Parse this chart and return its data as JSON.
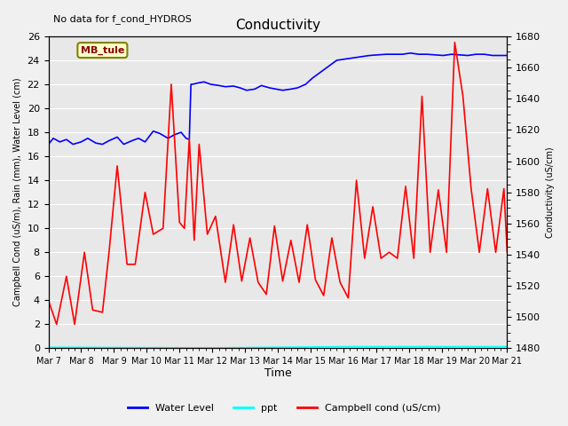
{
  "title": "Conductivity",
  "top_left_text": "No data for f_cond_HYDROS",
  "ylabel_left": "Campbell Cond (uS/m), Rain (mm), Water Level (cm)",
  "ylabel_right": "Conductivity (uS/cm)",
  "xlabel": "Time",
  "ylim_left": [
    0,
    26
  ],
  "ylim_right": [
    1480,
    1680
  ],
  "yticks_left": [
    0,
    2,
    4,
    6,
    8,
    10,
    12,
    14,
    16,
    18,
    20,
    22,
    24,
    26
  ],
  "yticks_right": [
    1480,
    1500,
    1520,
    1540,
    1560,
    1580,
    1600,
    1620,
    1640,
    1660,
    1680
  ],
  "xtick_labels": [
    "Mar 7",
    "Mar 8",
    "Mar 9",
    "Mar 10",
    "Mar 11",
    "Mar 12",
    "Mar 13",
    "Mar 14",
    "Mar 15",
    "Mar 16",
    "Mar 17",
    "Mar 18",
    "Mar 19",
    "Mar 20",
    "Mar 21"
  ],
  "annotation_box": "MB_tule",
  "background_color": "#f0f0f0",
  "plot_bg_color": "#e8e8e8",
  "grid_color": "white",
  "water_level_color": "blue",
  "ppt_color": "cyan",
  "campbell_cond_color": "red",
  "wl_x": [
    0,
    0.15,
    0.35,
    0.55,
    0.75,
    1.0,
    1.2,
    1.45,
    1.65,
    1.85,
    2.1,
    2.3,
    2.55,
    2.75,
    2.95,
    3.2,
    3.4,
    3.65,
    3.85,
    4.05,
    4.2,
    4.3,
    4.35,
    4.4,
    4.55,
    4.75,
    4.95,
    5.2,
    5.4,
    5.65,
    5.85,
    6.05,
    6.3,
    6.5,
    6.75,
    6.95,
    7.15,
    7.4,
    7.6,
    7.85,
    8.05,
    8.3,
    8.55,
    8.8,
    9.05,
    9.3,
    9.55,
    9.8,
    10.05,
    10.3,
    10.55,
    10.8,
    11.05,
    11.3,
    11.55,
    11.8,
    12.05,
    12.3,
    12.55,
    12.8,
    13.05,
    13.3,
    13.55,
    13.8,
    14.0
  ],
  "wl_y": [
    17.0,
    17.5,
    17.2,
    17.4,
    17.0,
    17.2,
    17.5,
    17.1,
    17.0,
    17.3,
    17.6,
    17.0,
    17.3,
    17.5,
    17.2,
    18.1,
    17.9,
    17.5,
    17.8,
    18.0,
    17.5,
    17.4,
    22.0,
    22.0,
    22.1,
    22.2,
    22.0,
    21.9,
    21.8,
    21.85,
    21.7,
    21.5,
    21.6,
    21.9,
    21.7,
    21.6,
    21.5,
    21.6,
    21.7,
    22.0,
    22.5,
    23.0,
    23.5,
    24.0,
    24.1,
    24.2,
    24.3,
    24.4,
    24.45,
    24.5,
    24.5,
    24.5,
    24.6,
    24.5,
    24.5,
    24.45,
    24.4,
    24.5,
    24.45,
    24.4,
    24.5,
    24.5,
    24.4,
    24.4,
    24.4
  ],
  "rc_x": [
    0,
    0.25,
    0.55,
    0.8,
    1.1,
    1.35,
    1.65,
    1.85,
    2.1,
    2.4,
    2.65,
    2.95,
    3.2,
    3.5,
    3.75,
    4.0,
    4.15,
    4.3,
    4.45,
    4.6,
    4.85,
    5.1,
    5.4,
    5.65,
    5.9,
    6.15,
    6.4,
    6.65,
    6.9,
    7.15,
    7.4,
    7.65,
    7.9,
    8.15,
    8.4,
    8.65,
    8.9,
    9.15,
    9.4,
    9.65,
    9.9,
    10.15,
    10.4,
    10.65,
    10.9,
    11.15,
    11.4,
    11.65,
    11.9,
    12.15,
    12.4,
    12.65,
    12.9,
    13.15,
    13.4,
    13.65,
    13.9,
    14.0
  ],
  "rc_y": [
    4.0,
    2.0,
    6.0,
    2.0,
    8.0,
    3.2,
    3.0,
    8.0,
    15.2,
    7.0,
    7.0,
    13.0,
    9.5,
    10.0,
    22.0,
    10.5,
    10.0,
    17.5,
    9.0,
    17.0,
    9.5,
    11.0,
    5.5,
    10.3,
    5.6,
    9.2,
    5.5,
    4.5,
    10.2,
    5.6,
    9.0,
    5.5,
    10.3,
    5.7,
    4.4,
    9.2,
    5.5,
    4.2,
    14.0,
    7.5,
    11.8,
    7.5,
    8.0,
    7.5,
    13.5,
    7.5,
    21.0,
    8.0,
    13.2,
    8.0,
    25.5,
    21.0,
    13.3,
    8.0,
    13.3,
    8.0,
    13.3,
    8.0
  ],
  "ppt_x": [
    0,
    5,
    9,
    14.5,
    17,
    28
  ],
  "ppt_y": [
    0.1,
    0.05,
    0.15,
    0.15,
    0.05,
    0.05
  ]
}
